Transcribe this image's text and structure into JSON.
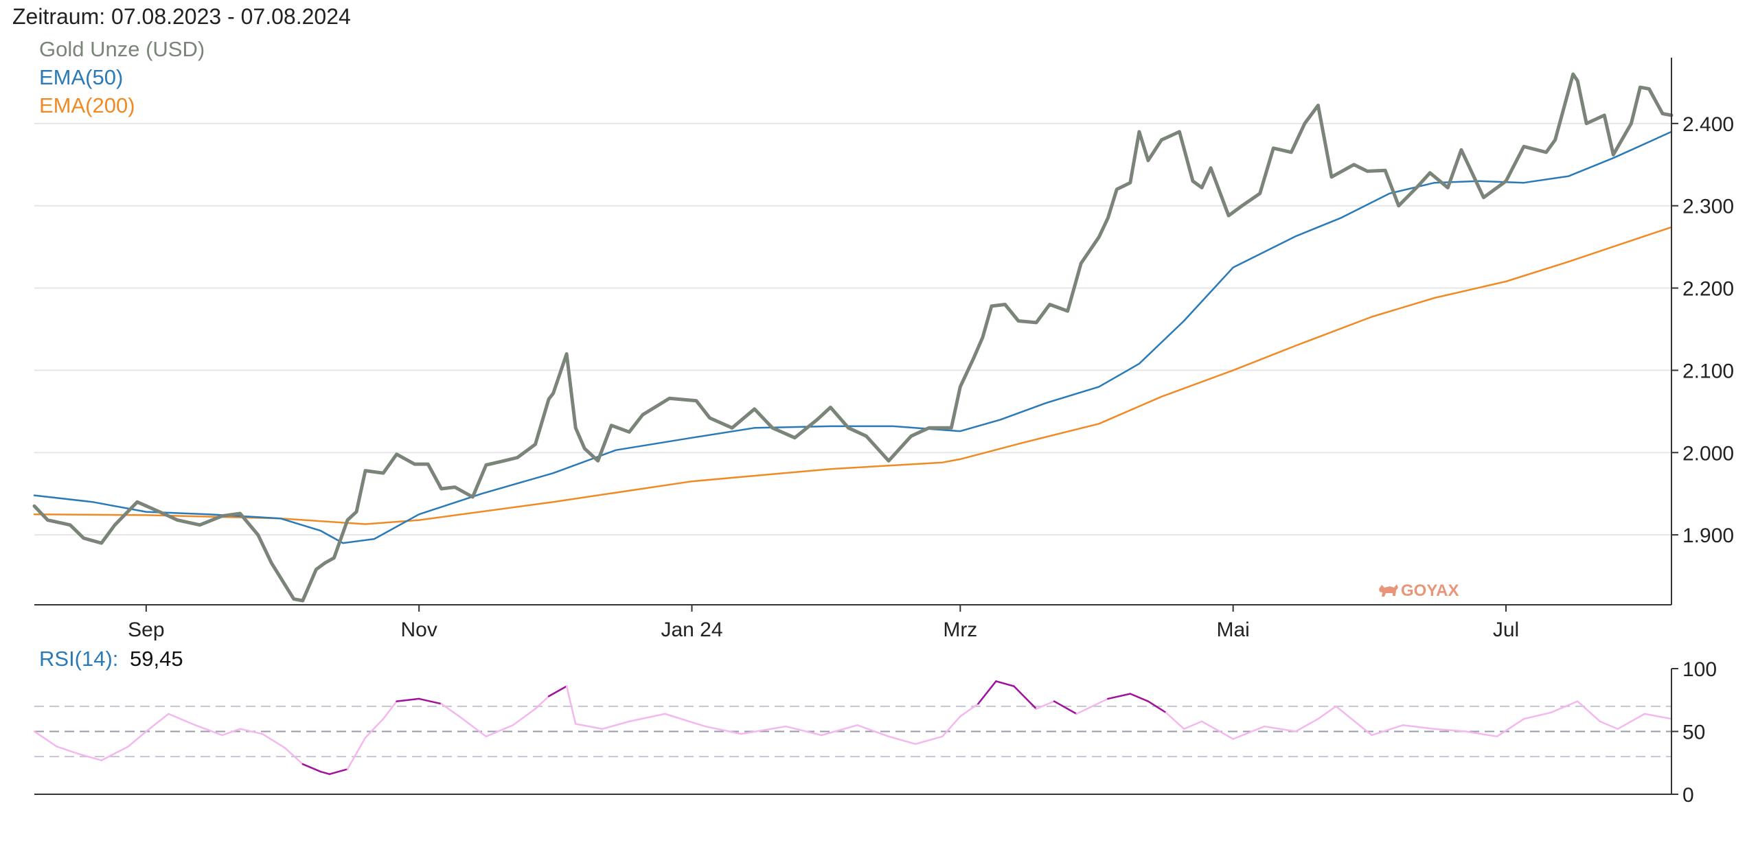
{
  "header": {
    "period_label": "Zeitraum: 07.08.2023 - 07.08.2024"
  },
  "watermark": {
    "text": "GOYAX",
    "color": "#e8967a"
  },
  "colors": {
    "gold": "#7a8478",
    "ema50": "#2a7ab8",
    "ema200": "#f08a24",
    "rsi_normal": "#f3b8ee",
    "rsi_extreme": "#a0119c",
    "grid": "#e6e6e6",
    "axis": "#333333",
    "legend_rsi": "#2a7ab8",
    "rsi_guides": "#c5c5d3"
  },
  "chart_data": [
    {
      "type": "line",
      "title": "Zeitraum: 07.08.2023 - 07.08.2024",
      "x_tick_labels": [
        "Sep",
        "Nov",
        "Jan 24",
        "Mrz",
        "Mai",
        "Jul"
      ],
      "x_tick_dates": [
        "2023-09-01",
        "2023-11-01",
        "2024-01-01",
        "2024-03-01",
        "2024-05-01",
        "2024-07-01"
      ],
      "x_range": [
        "2023-08-07",
        "2024-08-07"
      ],
      "y_tick_labels": [
        "1.900",
        "2.000",
        "2.100",
        "2.200",
        "2.300",
        "2.400"
      ],
      "y_ticks": [
        1900,
        2000,
        2100,
        2200,
        2300,
        2400
      ],
      "ylim": [
        1815,
        2480
      ],
      "grid": true,
      "legend_position": "top-left",
      "series": [
        {
          "name": "Gold Unze (USD)",
          "dates": [
            "2023-08-07",
            "2023-08-10",
            "2023-08-15",
            "2023-08-18",
            "2023-08-22",
            "2023-08-25",
            "2023-08-30",
            "2023-09-04",
            "2023-09-08",
            "2023-09-13",
            "2023-09-18",
            "2023-09-22",
            "2023-09-26",
            "2023-09-29",
            "2023-10-04",
            "2023-10-06",
            "2023-10-09",
            "2023-10-11",
            "2023-10-13",
            "2023-10-16",
            "2023-10-18",
            "2023-10-20",
            "2023-10-24",
            "2023-10-27",
            "2023-10-31",
            "2023-11-03",
            "2023-11-06",
            "2023-11-09",
            "2023-11-13",
            "2023-11-16",
            "2023-11-20",
            "2023-11-23",
            "2023-11-27",
            "2023-11-30",
            "2023-12-01",
            "2023-12-04",
            "2023-12-06",
            "2023-12-08",
            "2023-12-11",
            "2023-12-14",
            "2023-12-18",
            "2023-12-21",
            "2023-12-27",
            "2024-01-02",
            "2024-01-05",
            "2024-01-10",
            "2024-01-15",
            "2024-01-19",
            "2024-01-24",
            "2024-01-29",
            "2024-02-01",
            "2024-02-05",
            "2024-02-09",
            "2024-02-14",
            "2024-02-19",
            "2024-02-23",
            "2024-02-28",
            "2024-03-01",
            "2024-03-04",
            "2024-03-06",
            "2024-03-08",
            "2024-03-11",
            "2024-03-14",
            "2024-03-18",
            "2024-03-21",
            "2024-03-25",
            "2024-03-28",
            "2024-04-01",
            "2024-04-03",
            "2024-04-05",
            "2024-04-08",
            "2024-04-10",
            "2024-04-12",
            "2024-04-15",
            "2024-04-17",
            "2024-04-19",
            "2024-04-22",
            "2024-04-24",
            "2024-04-26",
            "2024-04-30",
            "2024-05-03",
            "2024-05-07",
            "2024-05-10",
            "2024-05-14",
            "2024-05-17",
            "2024-05-20",
            "2024-05-23",
            "2024-05-28",
            "2024-05-31",
            "2024-06-04",
            "2024-06-07",
            "2024-06-11",
            "2024-06-14",
            "2024-06-18",
            "2024-06-21",
            "2024-06-26",
            "2024-07-01",
            "2024-07-05",
            "2024-07-10",
            "2024-07-12",
            "2024-07-16",
            "2024-07-17",
            "2024-07-19",
            "2024-07-23",
            "2024-07-25",
            "2024-07-29",
            "2024-07-31",
            "2024-08-02",
            "2024-08-05",
            "2024-08-07"
          ],
          "values": [
            1935,
            1918,
            1912,
            1896,
            1890,
            1912,
            1940,
            1928,
            1918,
            1912,
            1923,
            1926,
            1900,
            1866,
            1822,
            1820,
            1858,
            1866,
            1872,
            1918,
            1928,
            1978,
            1975,
            1998,
            1986,
            1986,
            1956,
            1958,
            1946,
            1985,
            1990,
            1994,
            2010,
            2065,
            2072,
            2120,
            2030,
            2005,
            1990,
            2033,
            2025,
            2046,
            2066,
            2063,
            2042,
            2030,
            2053,
            2030,
            2018,
            2040,
            2055,
            2030,
            2020,
            1990,
            2020,
            2030,
            2030,
            2080,
            2115,
            2140,
            2178,
            2180,
            2160,
            2158,
            2180,
            2172,
            2230,
            2262,
            2285,
            2320,
            2328,
            2390,
            2355,
            2380,
            2385,
            2390,
            2330,
            2322,
            2346,
            2288,
            2300,
            2315,
            2370,
            2365,
            2400,
            2422,
            2335,
            2350,
            2342,
            2343,
            2300,
            2322,
            2340,
            2322,
            2368,
            2310,
            2330,
            2372,
            2365,
            2380,
            2460,
            2452,
            2400,
            2410,
            2362,
            2400,
            2444,
            2442,
            2412,
            2410
          ]
        },
        {
          "name": "EMA(50)",
          "dates": [
            "2023-08-07",
            "2023-08-20",
            "2023-09-01",
            "2023-09-15",
            "2023-10-01",
            "2023-10-10",
            "2023-10-15",
            "2023-10-22",
            "2023-11-01",
            "2023-11-15",
            "2023-12-01",
            "2023-12-15",
            "2024-01-01",
            "2024-01-15",
            "2024-02-01",
            "2024-02-15",
            "2024-02-25",
            "2024-03-01",
            "2024-03-10",
            "2024-03-20",
            "2024-04-01",
            "2024-04-10",
            "2024-04-20",
            "2024-05-01",
            "2024-05-15",
            "2024-05-25",
            "2024-06-05",
            "2024-06-15",
            "2024-06-25",
            "2024-07-05",
            "2024-07-15",
            "2024-07-25",
            "2024-08-07"
          ],
          "values": [
            1948,
            1940,
            1928,
            1925,
            1920,
            1905,
            1890,
            1895,
            1925,
            1950,
            1975,
            2003,
            2018,
            2030,
            2032,
            2032,
            2028,
            2026,
            2040,
            2060,
            2080,
            2108,
            2160,
            2225,
            2263,
            2285,
            2315,
            2328,
            2330,
            2328,
            2336,
            2358,
            2390
          ]
        },
        {
          "name": "EMA(200)",
          "dates": [
            "2023-08-07",
            "2023-09-01",
            "2023-10-01",
            "2023-10-20",
            "2023-11-01",
            "2023-12-01",
            "2024-01-01",
            "2024-02-01",
            "2024-02-26",
            "2024-03-01",
            "2024-03-15",
            "2024-04-01",
            "2024-04-15",
            "2024-05-01",
            "2024-05-15",
            "2024-06-01",
            "2024-06-15",
            "2024-07-01",
            "2024-07-15",
            "2024-08-07"
          ],
          "values": [
            1925,
            1924,
            1920,
            1913,
            1918,
            1940,
            1965,
            1980,
            1988,
            1992,
            2012,
            2035,
            2068,
            2100,
            2130,
            2165,
            2188,
            2208,
            2232,
            2274
          ]
        }
      ]
    },
    {
      "type": "line",
      "title": "",
      "legend_label": "RSI(14):",
      "current_value_label": "59,45",
      "y_tick_labels": [
        "0",
        "50",
        "100"
      ],
      "y_ticks": [
        0,
        50,
        100
      ],
      "ylim": [
        0,
        100
      ],
      "guides": [
        30,
        50,
        70
      ],
      "overbought": 70,
      "oversold": 30,
      "series": [
        {
          "name": "RSI(14)",
          "dates": [
            "2023-08-07",
            "2023-08-12",
            "2023-08-17",
            "2023-08-22",
            "2023-08-28",
            "2023-09-01",
            "2023-09-06",
            "2023-09-12",
            "2023-09-18",
            "2023-09-22",
            "2023-09-27",
            "2023-10-02",
            "2023-10-06",
            "2023-10-10",
            "2023-10-12",
            "2023-10-16",
            "2023-10-20",
            "2023-10-24",
            "2023-10-27",
            "2023-11-01",
            "2023-11-06",
            "2023-11-10",
            "2023-11-16",
            "2023-11-22",
            "2023-11-27",
            "2023-11-30",
            "2023-12-04",
            "2023-12-06",
            "2023-12-12",
            "2023-12-18",
            "2023-12-26",
            "2024-01-04",
            "2024-01-12",
            "2024-01-22",
            "2024-01-30",
            "2024-02-07",
            "2024-02-14",
            "2024-02-20",
            "2024-02-26",
            "2024-03-01",
            "2024-03-05",
            "2024-03-09",
            "2024-03-13",
            "2024-03-18",
            "2024-03-22",
            "2024-03-27",
            "2024-04-03",
            "2024-04-08",
            "2024-04-12",
            "2024-04-16",
            "2024-04-20",
            "2024-04-24",
            "2024-05-01",
            "2024-05-08",
            "2024-05-15",
            "2024-05-20",
            "2024-05-24",
            "2024-06-01",
            "2024-06-08",
            "2024-06-15",
            "2024-06-22",
            "2024-06-29",
            "2024-07-05",
            "2024-07-11",
            "2024-07-17",
            "2024-07-22",
            "2024-07-26",
            "2024-08-01",
            "2024-08-07"
          ],
          "values": [
            50,
            38,
            32,
            27,
            38,
            50,
            64,
            55,
            47,
            52,
            48,
            37,
            24,
            18,
            16,
            20,
            45,
            60,
            74,
            76,
            72,
            62,
            46,
            55,
            68,
            78,
            86,
            56,
            52,
            58,
            64,
            54,
            48,
            54,
            47,
            55,
            46,
            40,
            46,
            62,
            72,
            90,
            86,
            68,
            74,
            64,
            76,
            80,
            74,
            65,
            52,
            58,
            44,
            54,
            50,
            60,
            70,
            47,
            55,
            52,
            50,
            46,
            60,
            65,
            74,
            58,
            52,
            64,
            60
          ]
        }
      ]
    }
  ]
}
